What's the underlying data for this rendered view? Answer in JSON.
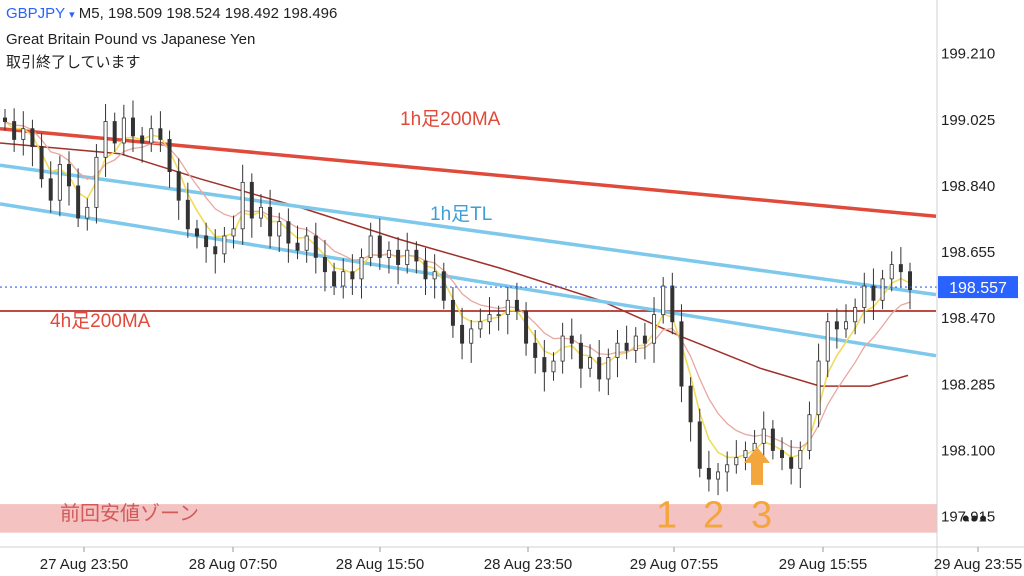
{
  "header": {
    "symbol": "GBPJPY",
    "dropdown_glyph": "▾",
    "timeframe": "M5",
    "ohlc": "198.509 198.524 198.492 198.496",
    "description": "Great Britain Pound vs Japanese Yen",
    "status": "取引終了しています"
  },
  "more_menu": "•••",
  "colors": {
    "ma_1h_200": "#e04a3a",
    "ma_4h_200": "#b5322a",
    "trendline": "#7ec8ec",
    "zone": "#f5c2c2",
    "arrow": "#f2a63c",
    "current_price_bg": "#2962ff",
    "candles": "#333333",
    "fast_ma": "#f0dc5a",
    "mid_ma": "#e8a8a0",
    "slow_ma": "#a0302a",
    "envelope": "#e6a6e6"
  },
  "chart_data": {
    "type": "candlestick",
    "symbol": "GBPJPY",
    "timeframe": "M5",
    "y_ticks": [
      "199.210",
      "199.025",
      "198.840",
      "198.655",
      "198.470",
      "198.285",
      "198.100",
      "197.915"
    ],
    "ylim": [
      197.83,
      199.36
    ],
    "x_ticks": [
      "27 Aug 23:50",
      "28 Aug 07:50",
      "28 Aug 15:50",
      "28 Aug 23:50",
      "29 Aug 07:55",
      "29 Aug 15:55",
      "29 Aug 23:55"
    ],
    "current_price": "198.557",
    "candles_close": [
      199.02,
      198.97,
      199.0,
      198.95,
      198.86,
      198.8,
      198.9,
      198.84,
      198.75,
      198.78,
      198.92,
      199.02,
      198.96,
      199.03,
      198.98,
      198.96,
      199.0,
      198.97,
      198.88,
      198.8,
      198.72,
      198.7,
      198.67,
      198.65,
      198.7,
      198.72,
      198.85,
      198.75,
      198.78,
      198.7,
      198.74,
      198.68,
      198.66,
      198.7,
      198.64,
      198.6,
      198.56,
      198.6,
      198.58,
      198.64,
      198.7,
      198.64,
      198.66,
      198.62,
      198.66,
      198.63,
      198.58,
      198.6,
      198.52,
      198.45,
      198.4,
      198.44,
      198.46,
      198.48,
      198.48,
      198.52,
      198.49,
      198.4,
      198.36,
      198.32,
      198.35,
      198.42,
      198.4,
      198.33,
      198.36,
      198.3,
      198.36,
      198.4,
      198.38,
      198.42,
      198.4,
      198.48,
      198.56,
      198.46,
      198.28,
      198.18,
      198.05,
      198.02,
      198.04,
      198.06,
      198.08,
      198.1,
      198.12,
      198.16,
      198.1,
      198.08,
      198.05,
      198.1,
      198.2,
      198.35,
      198.46,
      198.44,
      198.46,
      198.5,
      198.56,
      198.52,
      198.58,
      198.62,
      198.6,
      198.55
    ],
    "lines": {
      "ma_1h_200": [
        [
          0,
          199.0
        ],
        [
          936,
          198.755
        ]
      ],
      "tl_upper": [
        [
          0,
          198.898
        ],
        [
          936,
          198.536
        ]
      ],
      "tl_lower": [
        [
          0,
          198.79
        ],
        [
          936,
          198.365
        ]
      ],
      "ma_4h_200": [
        [
          0,
          198.49
        ],
        [
          936,
          198.49
        ]
      ],
      "slow_ma": [
        [
          0,
          198.96
        ],
        [
          120,
          198.93
        ],
        [
          200,
          198.86
        ],
        [
          300,
          198.78
        ],
        [
          400,
          198.69
        ],
        [
          500,
          198.61
        ],
        [
          600,
          198.52
        ],
        [
          680,
          198.42
        ],
        [
          760,
          198.33
        ],
        [
          820,
          198.28
        ],
        [
          870,
          198.28
        ],
        [
          908,
          198.31
        ]
      ]
    },
    "zone": {
      "from": 197.87,
      "to": 197.95
    },
    "annotations": [
      {
        "text": "1h足200MA",
        "at": [
          400,
          199.01
        ]
      },
      {
        "text": "1h足TL",
        "at": [
          430,
          198.745
        ]
      },
      {
        "text": "4h足200MA",
        "at": [
          50,
          198.445
        ]
      },
      {
        "text": "前回安値ゾーン",
        "at": [
          60,
          197.905
        ]
      },
      {
        "text": "1",
        "at": [
          656,
          197.885
        ]
      },
      {
        "text": "2",
        "at": [
          703,
          197.885
        ]
      },
      {
        "text": "3",
        "at": [
          751,
          197.885
        ]
      }
    ],
    "arrow_at": [
      757,
      198.11
    ]
  }
}
